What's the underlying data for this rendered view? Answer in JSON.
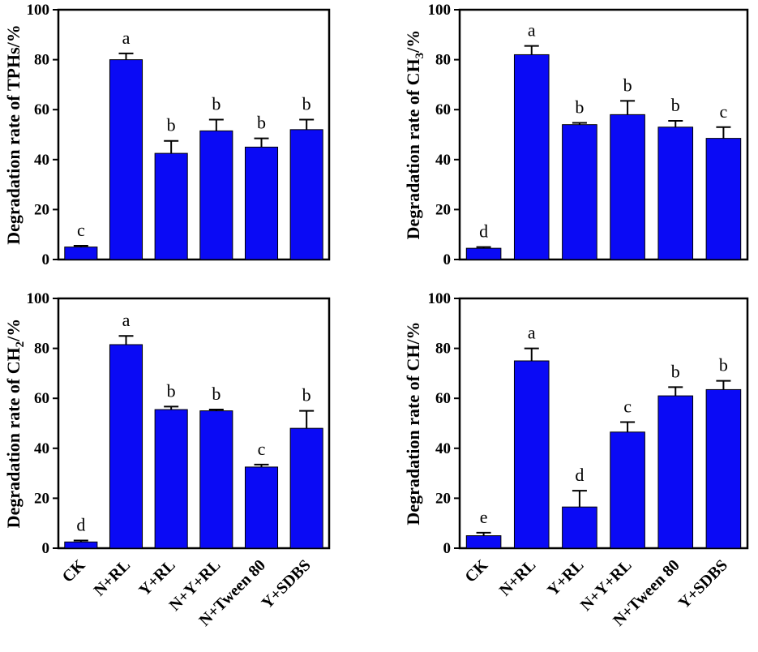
{
  "colors": {
    "bar": "#0a0af5",
    "bar_stroke": "#000000"
  },
  "chart_data": [
    {
      "type": "bar",
      "ylabel": "Degradation rate of TPHs/%",
      "ylabel_parts": [
        {
          "text": "Degradation rate of TPHs/%",
          "sub": false
        }
      ],
      "categories": [
        "CK",
        "N+RL",
        "Y+RL",
        "N+Y+RL",
        "N+Tween 80",
        "Y+SDBS"
      ],
      "values": [
        5,
        80,
        42.5,
        51.5,
        45,
        52
      ],
      "errors": [
        0.5,
        2.5,
        5,
        4.5,
        3.5,
        4
      ],
      "letters": [
        "c",
        "a",
        "b",
        "b",
        "b",
        "b"
      ],
      "ylim": [
        0,
        100
      ],
      "yticks": [
        "0",
        "20",
        "40",
        "60",
        "80",
        "100"
      ]
    },
    {
      "type": "bar",
      "ylabel": "Degradation rate of CH3/%",
      "ylabel_parts": [
        {
          "text": "Degradation rate of CH",
          "sub": false
        },
        {
          "text": "3",
          "sub": true
        },
        {
          "text": "/%",
          "sub": false
        }
      ],
      "categories": [
        "CK",
        "N+RL",
        "Y+RL",
        "N+Y+RL",
        "N+Tween 80",
        "Y+SDBS"
      ],
      "values": [
        4.5,
        82,
        54,
        58,
        53,
        48.5
      ],
      "errors": [
        0.5,
        3.5,
        0.7,
        5.5,
        2.5,
        4.5
      ],
      "letters": [
        "d",
        "a",
        "b",
        "b",
        "b",
        "c"
      ],
      "ylim": [
        0,
        100
      ],
      "yticks": [
        "0",
        "20",
        "40",
        "60",
        "80",
        "100"
      ]
    },
    {
      "type": "bar",
      "ylabel": "Degradation rate of CH2/%",
      "ylabel_parts": [
        {
          "text": "Degradation rate of CH",
          "sub": false
        },
        {
          "text": "2",
          "sub": true
        },
        {
          "text": "/%",
          "sub": false
        }
      ],
      "categories": [
        "CK",
        "N+RL",
        "Y+RL",
        "N+Y+RL",
        "N+Tween 80",
        "Y+SDBS"
      ],
      "values": [
        2.5,
        81.5,
        55.5,
        55,
        32.5,
        48
      ],
      "errors": [
        0.6,
        3.5,
        1.2,
        0.5,
        1,
        7
      ],
      "letters": [
        "d",
        "a",
        "b",
        "b",
        "c",
        "b"
      ],
      "ylim": [
        0,
        100
      ],
      "yticks": [
        "0",
        "20",
        "40",
        "60",
        "80",
        "100"
      ]
    },
    {
      "type": "bar",
      "ylabel": "Degradation rate of CH/%",
      "ylabel_parts": [
        {
          "text": "Degradation rate of CH/%",
          "sub": false
        }
      ],
      "categories": [
        "CK",
        "N+RL",
        "Y+RL",
        "N+Y+RL",
        "N+Tween 80",
        "Y+SDBS"
      ],
      "values": [
        5,
        75,
        16.5,
        46.5,
        61,
        63.5
      ],
      "errors": [
        1.2,
        5,
        6.5,
        4,
        3.5,
        3.5
      ],
      "letters": [
        "e",
        "a",
        "d",
        "c",
        "b",
        "b"
      ],
      "ylim": [
        0,
        100
      ],
      "yticks": [
        "0",
        "20",
        "40",
        "60",
        "80",
        "100"
      ]
    }
  ]
}
